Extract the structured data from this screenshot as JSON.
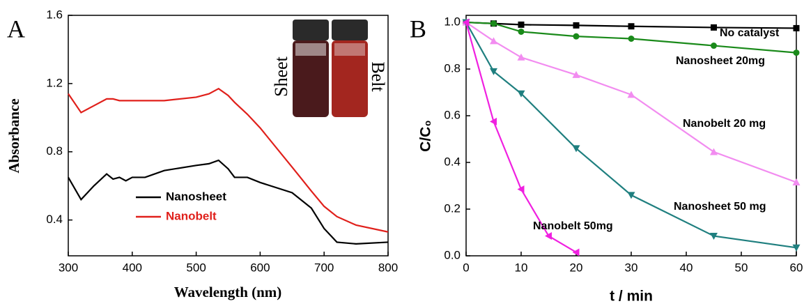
{
  "chart_data": [
    {
      "type": "line",
      "panel_label": "A",
      "x_label": "Wavelength (nm)",
      "y_label": "Absorbance",
      "inset_labels": [
        "Sheet",
        "Belt"
      ],
      "x": [
        300,
        320,
        340,
        360,
        370,
        380,
        390,
        400,
        420,
        450,
        500,
        520,
        535,
        550,
        560,
        580,
        600,
        650,
        680,
        700,
        720,
        750,
        800
      ],
      "series": [
        {
          "name": "Nanosheet",
          "color": "#000000",
          "values": [
            0.65,
            0.52,
            0.6,
            0.67,
            0.64,
            0.65,
            0.63,
            0.65,
            0.65,
            0.69,
            0.72,
            0.73,
            0.75,
            0.7,
            0.65,
            0.65,
            0.62,
            0.56,
            0.47,
            0.35,
            0.27,
            0.26,
            0.27
          ]
        },
        {
          "name": "Nanobelt",
          "color": "#e0201b",
          "values": [
            1.14,
            1.03,
            1.07,
            1.11,
            1.11,
            1.1,
            1.1,
            1.1,
            1.1,
            1.1,
            1.12,
            1.14,
            1.17,
            1.13,
            1.09,
            1.02,
            0.94,
            0.71,
            0.57,
            0.48,
            0.42,
            0.37,
            0.33
          ]
        }
      ],
      "xlim": [
        300,
        800
      ],
      "xticks": [
        300,
        400,
        500,
        600,
        700,
        800
      ],
      "ylim": [
        0.19,
        1.6
      ],
      "yticks": [
        0.4,
        0.8,
        1.2,
        1.6
      ]
    },
    {
      "type": "line",
      "panel_label": "B",
      "x_label": "t / min",
      "y_label": "C/C₀",
      "series": [
        {
          "name": "No catalyst",
          "color": "#000000",
          "marker": "square",
          "x": [
            0,
            5,
            10,
            20,
            30,
            45,
            60
          ],
          "values": [
            1,
            0.995,
            0.99,
            0.987,
            0.983,
            0.978,
            0.975
          ]
        },
        {
          "name": "Nanosheet 20mg",
          "color": "#1a8a1a",
          "marker": "circle",
          "x": [
            0,
            5,
            10,
            20,
            30,
            45,
            60
          ],
          "values": [
            1,
            0.995,
            0.96,
            0.94,
            0.93,
            0.9,
            0.87
          ]
        },
        {
          "name": "Nanobelt 20 mg",
          "color": "#f28cf0",
          "marker": "triangle-up",
          "x": [
            0,
            5,
            10,
            20,
            30,
            45,
            60
          ],
          "values": [
            1,
            0.92,
            0.85,
            0.775,
            0.69,
            0.445,
            0.315
          ]
        },
        {
          "name": "Nanosheet 50 mg",
          "color": "#1f7f7f",
          "marker": "triangle-down",
          "x": [
            0,
            5,
            10,
            20,
            30,
            45,
            60
          ],
          "values": [
            1,
            0.79,
            0.695,
            0.46,
            0.26,
            0.085,
            0.035
          ]
        },
        {
          "name": "Nanobelt 50mg",
          "color": "#f020e0",
          "marker": "triangle-left",
          "x": [
            0,
            5,
            10,
            15,
            20
          ],
          "values": [
            1,
            0.575,
            0.285,
            0.085,
            0.015
          ]
        }
      ],
      "xlim": [
        0,
        60
      ],
      "xticks": [
        0,
        10,
        20,
        30,
        40,
        50,
        60
      ],
      "ylim": [
        0,
        1.03
      ],
      "yticks": [
        {
          "value": 0,
          "label": "0.0"
        },
        0.2,
        0.4,
        0.6,
        0.8,
        {
          "value": 1,
          "label": "1.0"
        }
      ]
    }
  ]
}
